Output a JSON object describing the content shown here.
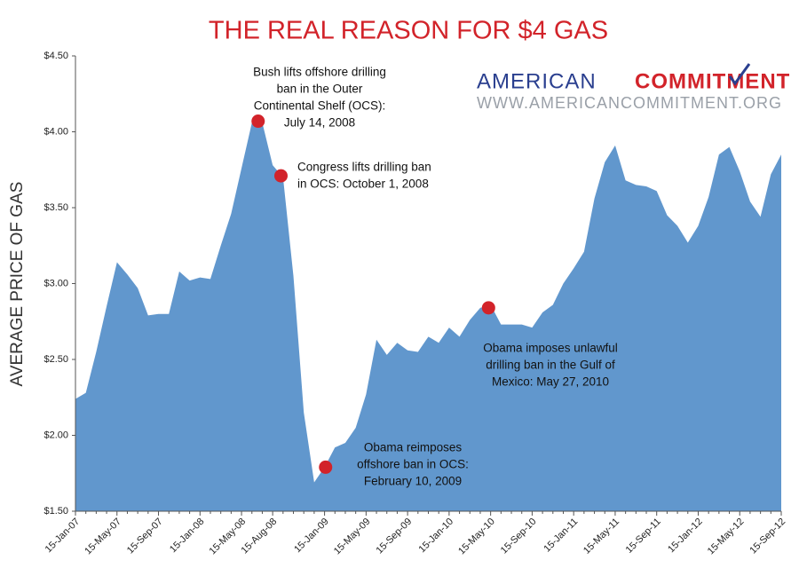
{
  "chart_data": {
    "type": "area",
    "title": "THE REAL REASON FOR $4 GAS",
    "y_label": "AVERAGE PRICE OF GAS",
    "color": "#6197cd",
    "categories": [
      "15-Jan-07",
      null,
      null,
      null,
      "15-May-07",
      null,
      null,
      null,
      "15-Sep-07",
      null,
      null,
      null,
      "15-Jan-08",
      null,
      null,
      null,
      "15-May-08",
      null,
      null,
      "15-Aug-08",
      null,
      null,
      null,
      null,
      "15-Jan-09",
      null,
      null,
      null,
      "15-May-09",
      null,
      null,
      null,
      "15-Sep-09",
      null,
      null,
      null,
      "15-Jan-10",
      null,
      null,
      null,
      "15-May-10",
      null,
      null,
      null,
      "15-Sep-10",
      null,
      null,
      null,
      "15-Jan-11",
      null,
      null,
      null,
      "15-May-11",
      null,
      null,
      null,
      "15-Sep-11",
      null,
      null,
      null,
      "15-Jan-12",
      null,
      null,
      null,
      "15-May-12",
      null,
      null,
      null,
      "15-Sep-12"
    ],
    "values": [
      2.24,
      2.28,
      2.55,
      2.85,
      3.14,
      3.06,
      2.97,
      2.79,
      2.8,
      2.8,
      3.08,
      3.02,
      3.04,
      3.03,
      3.25,
      3.46,
      3.76,
      4.06,
      4.06,
      3.78,
      3.7,
      3.05,
      2.15,
      1.69,
      1.79,
      1.92,
      1.95,
      2.05,
      2.27,
      2.63,
      2.53,
      2.61,
      2.56,
      2.55,
      2.65,
      2.61,
      2.71,
      2.65,
      2.76,
      2.84,
      2.86,
      2.73,
      2.73,
      2.73,
      2.71,
      2.81,
      2.86,
      3.0,
      3.1,
      3.21,
      3.56,
      3.8,
      3.91,
      3.68,
      3.65,
      3.64,
      3.61,
      3.45,
      3.38,
      3.27,
      3.38,
      3.57,
      3.85,
      3.9,
      3.74,
      3.54,
      3.44,
      3.72,
      3.85
    ],
    "ylim": [
      1.5,
      4.5
    ],
    "yticks": [
      {
        "value": 1.5,
        "label": "$1.50"
      },
      {
        "value": 2.0,
        "label": "$2.00"
      },
      {
        "value": 2.5,
        "label": "$2.50"
      },
      {
        "value": 3.0,
        "label": "$3.00"
      },
      {
        "value": 3.5,
        "label": "$3.50"
      },
      {
        "value": 4.0,
        "label": "$4.00"
      },
      {
        "value": 4.5,
        "label": "$4.50"
      }
    ],
    "annotations": [
      {
        "at": 17.6,
        "value": 4.07,
        "marker_color": "#d2232a",
        "lines": [
          "Bush lifts offshore drilling",
          "ban in the Outer",
          "Continental Shelf (OCS):",
          "July 14, 2008"
        ]
      },
      {
        "at": 19.8,
        "value": 3.71,
        "marker_color": "#d2232a",
        "lines": [
          "Congress lifts drilling ban",
          "in OCS: October 1, 2008"
        ]
      },
      {
        "at": 24.1,
        "value": 1.79,
        "marker_color": "#d2232a",
        "lines": [
          "Obama reimposes",
          "offshore ban in OCS:",
          "February 10, 2009"
        ]
      },
      {
        "at": 39.8,
        "value": 2.84,
        "marker_color": "#d2232a",
        "lines": [
          "Obama imposes unlawful",
          "drilling ban in the Gulf of",
          "Mexico: May 27, 2010"
        ]
      }
    ],
    "logo": {
      "word1": "AMERICAN",
      "word2": "COMMITMENT",
      "url": "WWW.AMERICANCOMMITMENT.ORG"
    }
  }
}
